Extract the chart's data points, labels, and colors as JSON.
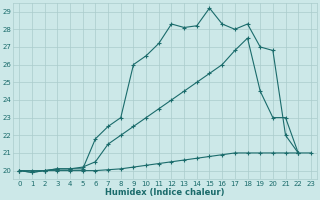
{
  "title": "",
  "xlabel": "Humidex (Indice chaleur)",
  "ylabel": "",
  "bg_color": "#cce8e8",
  "grid_color": "#aacccc",
  "line_color": "#1a6b6b",
  "xlim": [
    -0.5,
    23.5
  ],
  "ylim": [
    19.5,
    29.5
  ],
  "yticks": [
    20,
    21,
    22,
    23,
    24,
    25,
    26,
    27,
    28,
    29
  ],
  "xticks": [
    0,
    1,
    2,
    3,
    4,
    5,
    6,
    7,
    8,
    9,
    10,
    11,
    12,
    13,
    14,
    15,
    16,
    17,
    18,
    19,
    20,
    21,
    22,
    23
  ],
  "line1_x": [
    0,
    1,
    2,
    3,
    4,
    5,
    6,
    7,
    8,
    9,
    10,
    11,
    12,
    13,
    14,
    15,
    16,
    17,
    18,
    19,
    20,
    21,
    22
  ],
  "line1_y": [
    20.0,
    19.9,
    20.0,
    20.1,
    20.1,
    20.1,
    21.8,
    22.5,
    23.0,
    26.0,
    26.5,
    27.2,
    28.3,
    28.1,
    28.2,
    29.2,
    28.3,
    28.0,
    28.3,
    27.0,
    26.8,
    22.0,
    21.0
  ],
  "line2_x": [
    0,
    1,
    2,
    3,
    4,
    5,
    6,
    7,
    8,
    9,
    10,
    11,
    12,
    13,
    14,
    15,
    16,
    17,
    18,
    19,
    20,
    21,
    22
  ],
  "line2_y": [
    20.0,
    20.0,
    20.0,
    20.1,
    20.1,
    20.2,
    20.5,
    21.5,
    22.0,
    22.5,
    23.0,
    23.5,
    24.0,
    24.5,
    25.0,
    25.5,
    26.0,
    26.8,
    27.5,
    24.5,
    23.0,
    23.0,
    21.0
  ],
  "line3_x": [
    0,
    1,
    2,
    3,
    4,
    5,
    6,
    7,
    8,
    9,
    10,
    11,
    12,
    13,
    14,
    15,
    16,
    17,
    18,
    19,
    20,
    21,
    22,
    23
  ],
  "line3_y": [
    20.0,
    19.9,
    20.0,
    20.0,
    20.0,
    20.0,
    20.0,
    20.05,
    20.1,
    20.2,
    20.3,
    20.4,
    20.5,
    20.6,
    20.7,
    20.8,
    20.9,
    21.0,
    21.0,
    21.0,
    21.0,
    21.0,
    21.0,
    21.0
  ],
  "marker_size": 2.5,
  "line_width": 0.8,
  "tick_fontsize": 5,
  "xlabel_fontsize": 6,
  "fig_width": 3.2,
  "fig_height": 2.0,
  "dpi": 100
}
